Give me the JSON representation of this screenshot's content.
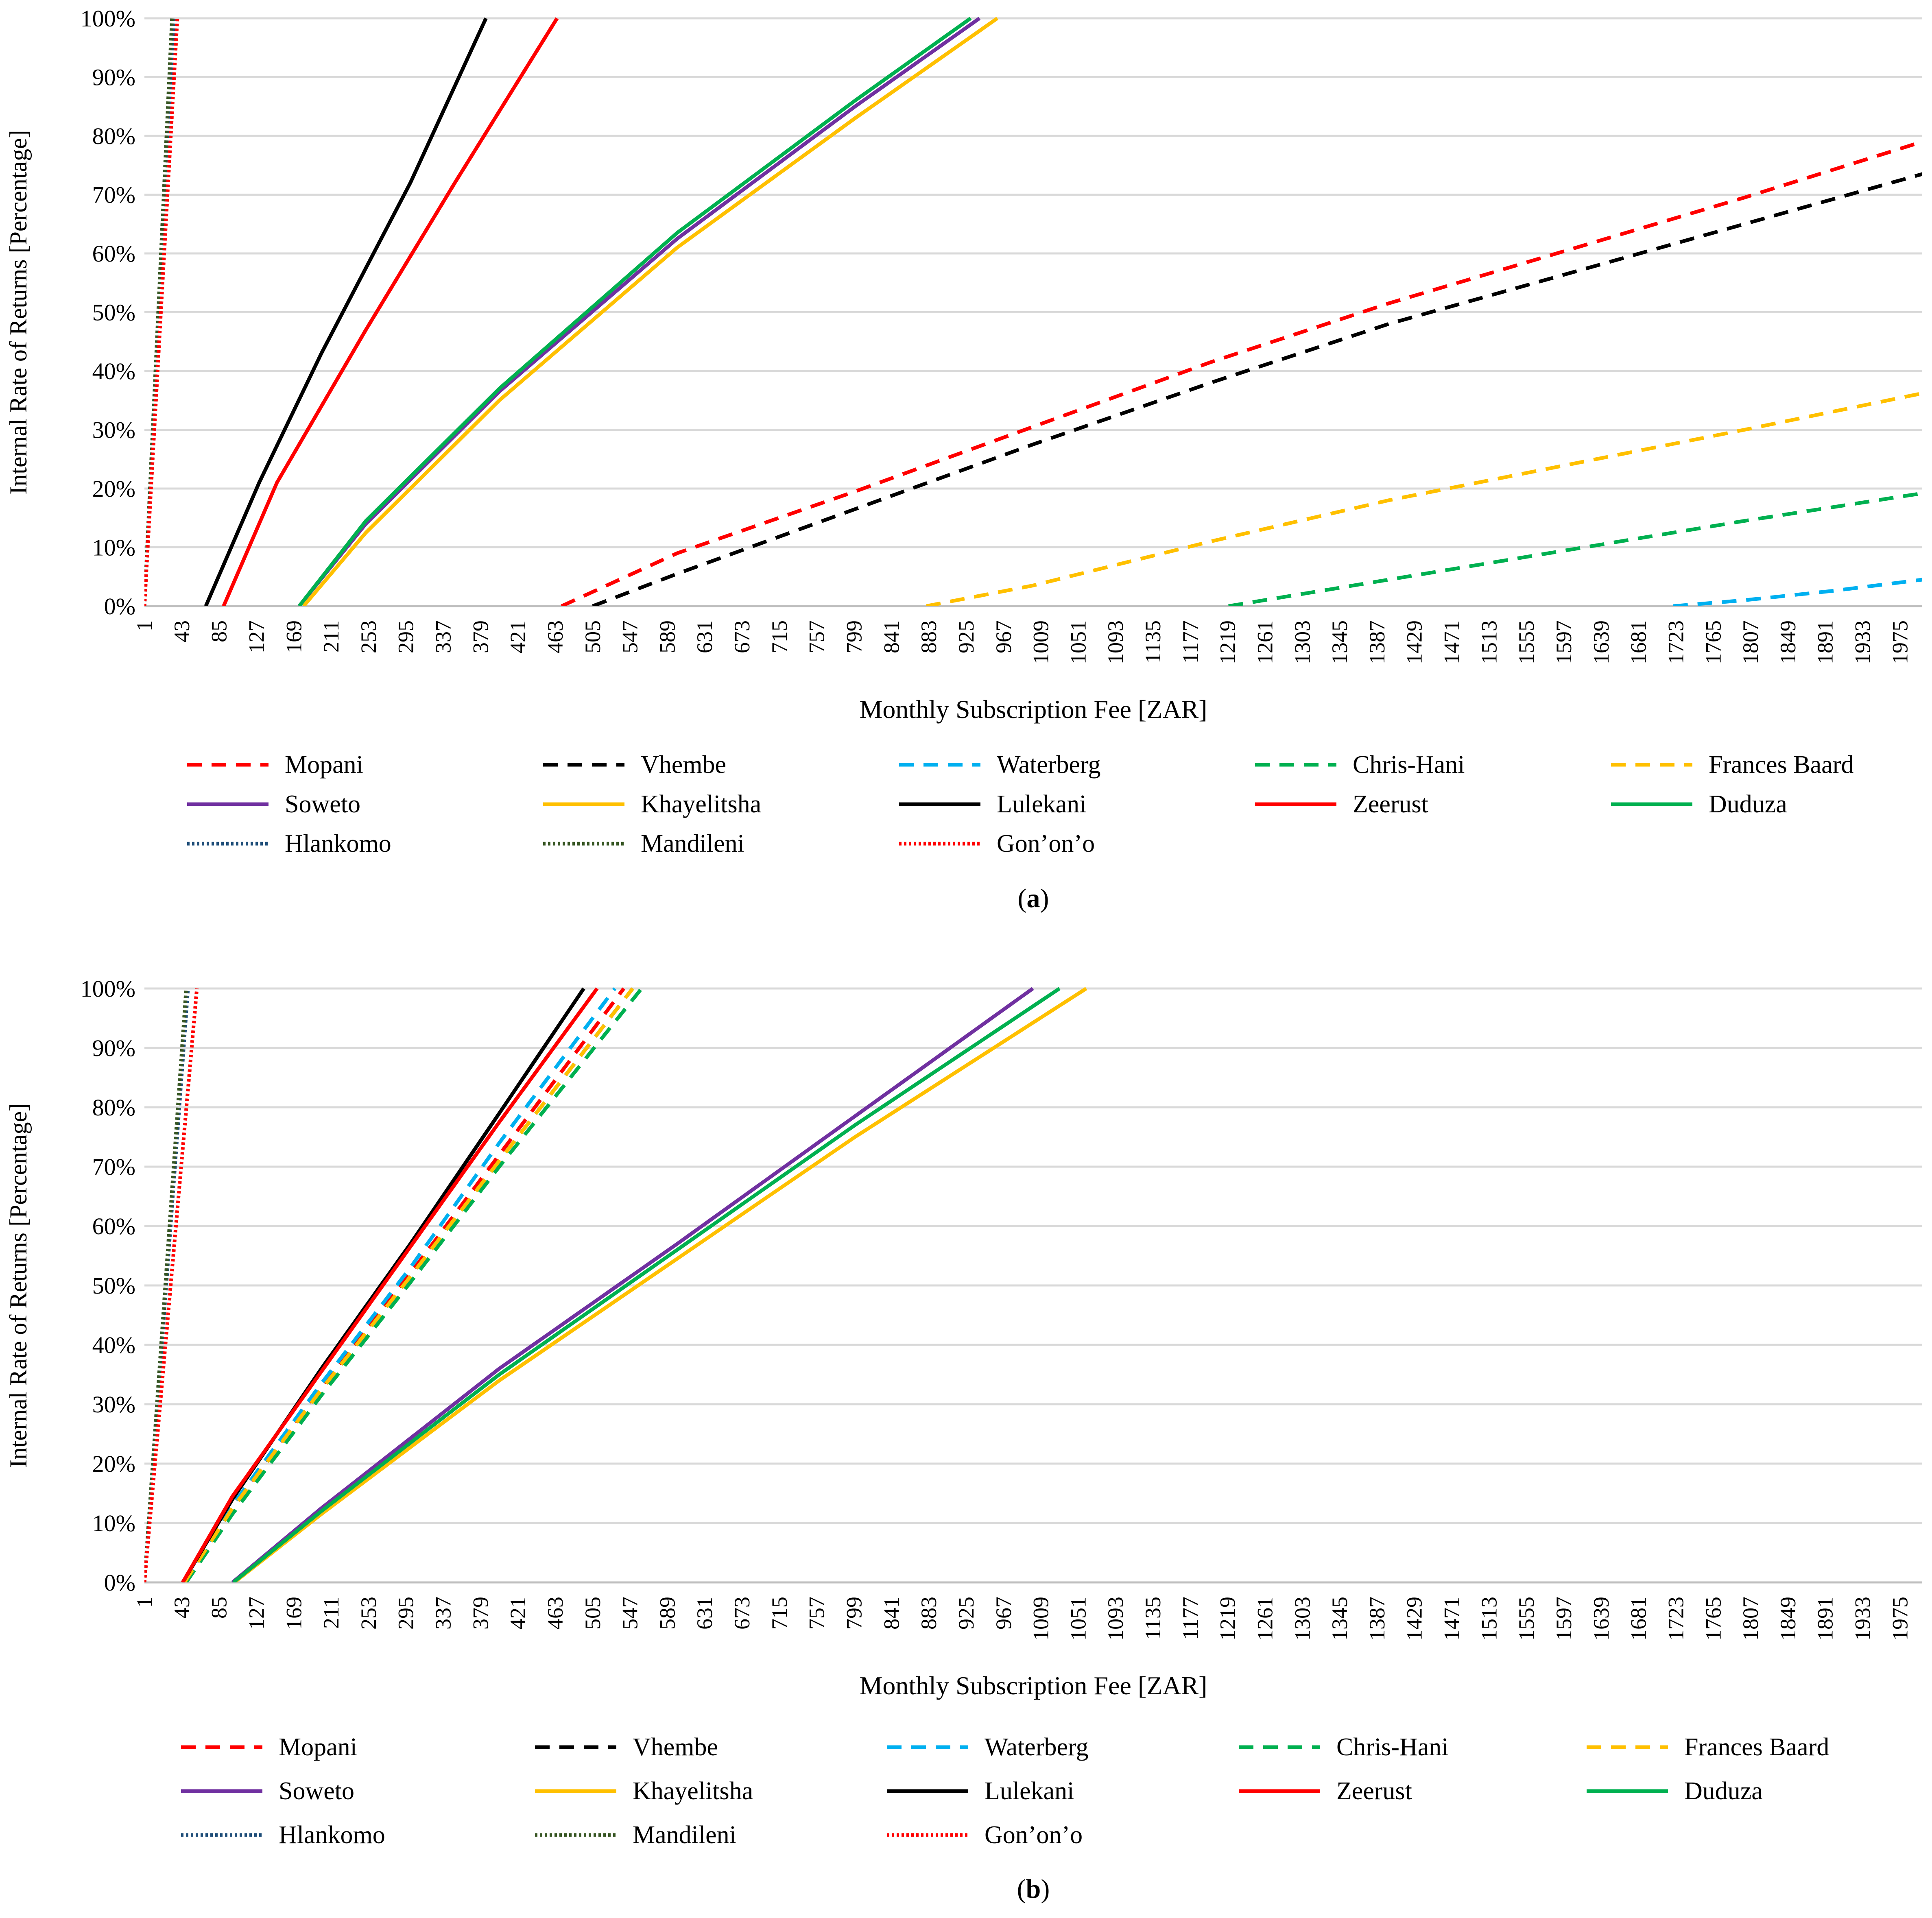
{
  "series_styles": {
    "Mopani": {
      "color": "#ff0000",
      "dash": "dashed"
    },
    "Vhembe": {
      "color": "#000000",
      "dash": "dashed"
    },
    "Waterberg": {
      "color": "#00b0f0",
      "dash": "dashed"
    },
    "Chris-Hani": {
      "color": "#00b050",
      "dash": "dashed"
    },
    "Frances Baard": {
      "color": "#ffc000",
      "dash": "dashed"
    },
    "Soweto": {
      "color": "#7030a0",
      "dash": "solid"
    },
    "Khayelitsha": {
      "color": "#ffc000",
      "dash": "solid"
    },
    "Lulekani": {
      "color": "#000000",
      "dash": "solid"
    },
    "Zeerust": {
      "color": "#ff0000",
      "dash": "solid"
    },
    "Duduza": {
      "color": "#00b050",
      "dash": "solid"
    },
    "Hlankomo": {
      "color": "#1f4e79",
      "dash": "dotted"
    },
    "Mandileni": {
      "color": "#375623",
      "dash": "dotted"
    },
    "Gon’on’o": {
      "color": "#ff0000",
      "dash": "dotted"
    }
  },
  "chart_data": [
    {
      "type": "line",
      "panel_label": "a",
      "xlabel": "Monthly Subscription Fee [ZAR]",
      "ylabel": "Internal Rate of Returns [Percentage]",
      "x_tick_labels": [
        "1",
        "43",
        "85",
        "127",
        "169",
        "211",
        "253",
        "295",
        "337",
        "379",
        "421",
        "463",
        "505",
        "547",
        "589",
        "631",
        "673",
        "715",
        "757",
        "799",
        "841",
        "883",
        "925",
        "967",
        "1009",
        "1051",
        "1093",
        "1135",
        "1177",
        "1219",
        "1261",
        "1303",
        "1345",
        "1387",
        "1429",
        "1471",
        "1513",
        "1555",
        "1597",
        "1639",
        "1681",
        "1723",
        "1765",
        "1807",
        "1849",
        "1891",
        "1933",
        "1975"
      ],
      "y_tick_labels": [
        "0%",
        "10%",
        "20%",
        "30%",
        "40%",
        "50%",
        "60%",
        "70%",
        "80%",
        "90%",
        "100%"
      ],
      "xlim": [
        1,
        2000
      ],
      "ylim": [
        0,
        100
      ],
      "grid": "horizontal",
      "legend_position": "bottom",
      "series": [
        {
          "name": "Mopani",
          "points": [
            [
              470,
              0
            ],
            [
              600,
              9
            ],
            [
              800,
              19.5
            ],
            [
              1000,
              30.5
            ],
            [
              1200,
              41.5
            ],
            [
              1400,
              51.5
            ],
            [
              1600,
              60.5
            ],
            [
              1800,
              69.5
            ],
            [
              2000,
              79
            ]
          ]
        },
        {
          "name": "Vhembe",
          "points": [
            [
              505,
              0
            ],
            [
              600,
              5.5
            ],
            [
              800,
              16.5
            ],
            [
              1000,
              27.5
            ],
            [
              1200,
              38
            ],
            [
              1400,
              48
            ],
            [
              1600,
              56.5
            ],
            [
              1800,
              65
            ],
            [
              2000,
              73.5
            ]
          ]
        },
        {
          "name": "Waterberg",
          "points": [
            [
              1720,
              0
            ],
            [
              1800,
              1
            ],
            [
              1900,
              2.6
            ],
            [
              2000,
              4.5
            ]
          ]
        },
        {
          "name": "Chris-Hani",
          "points": [
            [
              1220,
              0
            ],
            [
              1400,
              4.5
            ],
            [
              1600,
              9.5
            ],
            [
              1800,
              14.5
            ],
            [
              2000,
              19.2
            ]
          ]
        },
        {
          "name": "Frances Baard",
          "points": [
            [
              880,
              0
            ],
            [
              1000,
              3.5
            ],
            [
              1200,
              11
            ],
            [
              1400,
              18
            ],
            [
              1600,
              24
            ],
            [
              1800,
              30
            ],
            [
              2000,
              36.2
            ]
          ]
        },
        {
          "name": "Soweto",
          "points": [
            [
              175,
              0
            ],
            [
              250,
              14
            ],
            [
              400,
              36.5
            ],
            [
              600,
              62.5
            ],
            [
              800,
              85
            ],
            [
              940,
              100
            ]
          ]
        },
        {
          "name": "Khayelitsha",
          "points": [
            [
              180,
              0
            ],
            [
              250,
              12.5
            ],
            [
              400,
              35
            ],
            [
              600,
              61
            ],
            [
              800,
              83
            ],
            [
              960,
              100
            ]
          ]
        },
        {
          "name": "Lulekani",
          "points": [
            [
              70,
              0
            ],
            [
              130,
              21
            ],
            [
              200,
              43
            ],
            [
              300,
              72
            ],
            [
              385,
              100
            ]
          ]
        },
        {
          "name": "Zeerust",
          "points": [
            [
              90,
              0
            ],
            [
              150,
              21
            ],
            [
              250,
              47
            ],
            [
              350,
              72
            ],
            [
              465,
              100
            ]
          ]
        },
        {
          "name": "Duduza",
          "points": [
            [
              175,
              0
            ],
            [
              250,
              14.5
            ],
            [
              400,
              37
            ],
            [
              600,
              63.5
            ],
            [
              800,
              86
            ],
            [
              930,
              100
            ]
          ]
        },
        {
          "name": "Hlankomo",
          "points": [
            [
              1,
              0
            ],
            [
              36,
              100
            ]
          ]
        },
        {
          "name": "Mandileni",
          "points": [
            [
              1,
              0
            ],
            [
              32,
              100
            ]
          ]
        },
        {
          "name": "Gon’on’o",
          "points": [
            [
              1,
              0
            ],
            [
              38,
              100
            ]
          ]
        }
      ]
    },
    {
      "type": "line",
      "panel_label": "b",
      "xlabel": "Monthly Subscription Fee [ZAR]",
      "ylabel": "Internal Rate of Returns [Percentage]",
      "x_tick_labels": [
        "1",
        "43",
        "85",
        "127",
        "169",
        "211",
        "253",
        "295",
        "337",
        "379",
        "421",
        "463",
        "505",
        "547",
        "589",
        "631",
        "673",
        "715",
        "757",
        "799",
        "841",
        "883",
        "925",
        "967",
        "1009",
        "1051",
        "1093",
        "1135",
        "1177",
        "1219",
        "1261",
        "1303",
        "1345",
        "1387",
        "1429",
        "1471",
        "1513",
        "1555",
        "1597",
        "1639",
        "1681",
        "1723",
        "1765",
        "1807",
        "1849",
        "1891",
        "1933",
        "1975"
      ],
      "y_tick_labels": [
        "0%",
        "10%",
        "20%",
        "30%",
        "40%",
        "50%",
        "60%",
        "70%",
        "80%",
        "90%",
        "100%"
      ],
      "xlim": [
        1,
        2000
      ],
      "ylim": [
        0,
        100
      ],
      "grid": "horizontal",
      "legend_position": "bottom",
      "series": [
        {
          "name": "Mopani",
          "points": [
            [
              45,
              0
            ],
            [
              100,
              13
            ],
            [
              200,
              33
            ],
            [
              300,
              52
            ],
            [
              400,
              72
            ],
            [
              540,
              100
            ]
          ]
        },
        {
          "name": "Vhembe",
          "points": [
            [
              46,
              0
            ],
            [
              100,
              12.5
            ],
            [
              200,
              32.5
            ],
            [
              300,
              51.5
            ],
            [
              400,
              71
            ],
            [
              550,
              100
            ]
          ]
        },
        {
          "name": "Waterberg",
          "points": [
            [
              45,
              0
            ],
            [
              100,
              13
            ],
            [
              200,
              33.5
            ],
            [
              300,
              53
            ],
            [
              400,
              74
            ],
            [
              530,
              100
            ]
          ]
        },
        {
          "name": "Chris-Hani",
          "points": [
            [
              48,
              0
            ],
            [
              100,
              11.5
            ],
            [
              200,
              31.5
            ],
            [
              300,
              50.5
            ],
            [
              400,
              70
            ],
            [
              560,
              100
            ]
          ]
        },
        {
          "name": "Frances Baard",
          "points": [
            [
              46,
              0
            ],
            [
              100,
              12.5
            ],
            [
              200,
              32.5
            ],
            [
              300,
              51.5
            ],
            [
              400,
              71
            ],
            [
              550,
              100
            ]
          ]
        },
        {
          "name": "Soweto",
          "points": [
            [
              100,
              0
            ],
            [
              200,
              12.5
            ],
            [
              400,
              36
            ],
            [
              600,
              57
            ],
            [
              800,
              78.5
            ],
            [
              1000,
              100
            ]
          ]
        },
        {
          "name": "Khayelitsha",
          "points": [
            [
              102,
              0
            ],
            [
              200,
              11.5
            ],
            [
              400,
              34
            ],
            [
              600,
              54.5
            ],
            [
              800,
              75
            ],
            [
              1060,
              100
            ]
          ]
        },
        {
          "name": "Lulekani",
          "points": [
            [
              44,
              0
            ],
            [
              100,
              14
            ],
            [
              200,
              36
            ],
            [
              300,
              57
            ],
            [
              400,
              79
            ],
            [
              495,
              100
            ]
          ]
        },
        {
          "name": "Zeerust",
          "points": [
            [
              44,
              0
            ],
            [
              100,
              14.5
            ],
            [
              200,
              35.5
            ],
            [
              300,
              56.5
            ],
            [
              400,
              77.5
            ],
            [
              510,
              100
            ]
          ]
        },
        {
          "name": "Duduza",
          "points": [
            [
              101,
              0
            ],
            [
              200,
              12
            ],
            [
              400,
              35
            ],
            [
              600,
              56
            ],
            [
              800,
              77
            ],
            [
              1030,
              100
            ]
          ]
        },
        {
          "name": "Hlankomo",
          "points": [
            [
              1,
              0
            ],
            [
              50,
              100
            ]
          ]
        },
        {
          "name": "Mandileni",
          "points": [
            [
              1,
              0
            ],
            [
              48,
              100
            ]
          ]
        },
        {
          "name": "Gon’on’o",
          "points": [
            [
              1,
              0
            ],
            [
              60,
              100
            ]
          ]
        }
      ]
    }
  ]
}
